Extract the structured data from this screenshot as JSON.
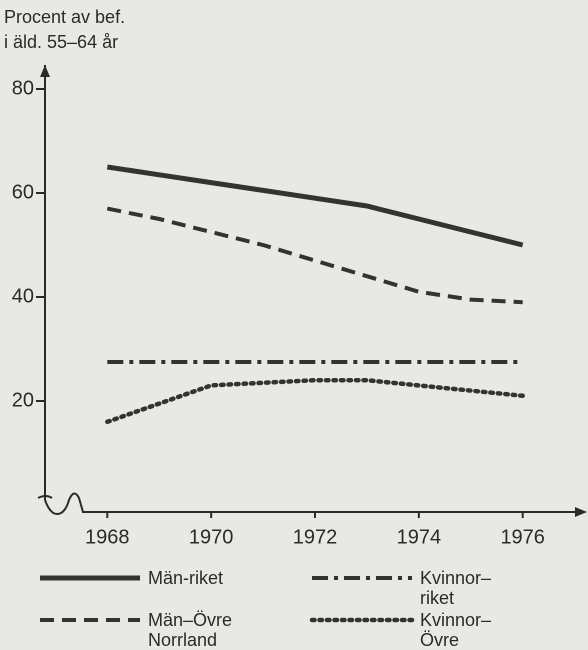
{
  "chart_data": {
    "type": "line",
    "ylabel": [
      "Procent av bef.",
      "i äld. 55–64 år"
    ],
    "x": [
      1968,
      1969,
      1970,
      1971,
      1972,
      1973,
      1974,
      1975,
      1976
    ],
    "xlim": [
      1966.8,
      1977.2
    ],
    "xticks": [
      1968,
      1970,
      1972,
      1974,
      1976
    ],
    "ylim": [
      0,
      85
    ],
    "yticks": [
      20,
      40,
      60,
      80
    ],
    "grid": false,
    "series": [
      {
        "name": "Män-riket",
        "color": "#333333",
        "linestyle": "solid",
        "values": [
          65,
          63.5,
          62,
          60.5,
          59,
          57.5,
          55,
          52.5,
          50
        ]
      },
      {
        "name": "Kvinnor–riket",
        "color": "#333333",
        "linestyle": "dashdot",
        "values": [
          27.5,
          27.5,
          27.5,
          27.5,
          27.5,
          27.5,
          27.5,
          27.5,
          27.5
        ]
      },
      {
        "name": "Män–Övre Norrland",
        "color": "#333333",
        "linestyle": "dashed",
        "values": [
          57,
          55,
          52.5,
          50,
          47,
          44,
          41,
          39.5,
          39
        ]
      },
      {
        "name": "Kvinnor–Övre Norrland",
        "color": "#333333",
        "linestyle": "dotted",
        "values": [
          16,
          19.5,
          23,
          23.5,
          24,
          24,
          23,
          22,
          21
        ]
      }
    ]
  }
}
